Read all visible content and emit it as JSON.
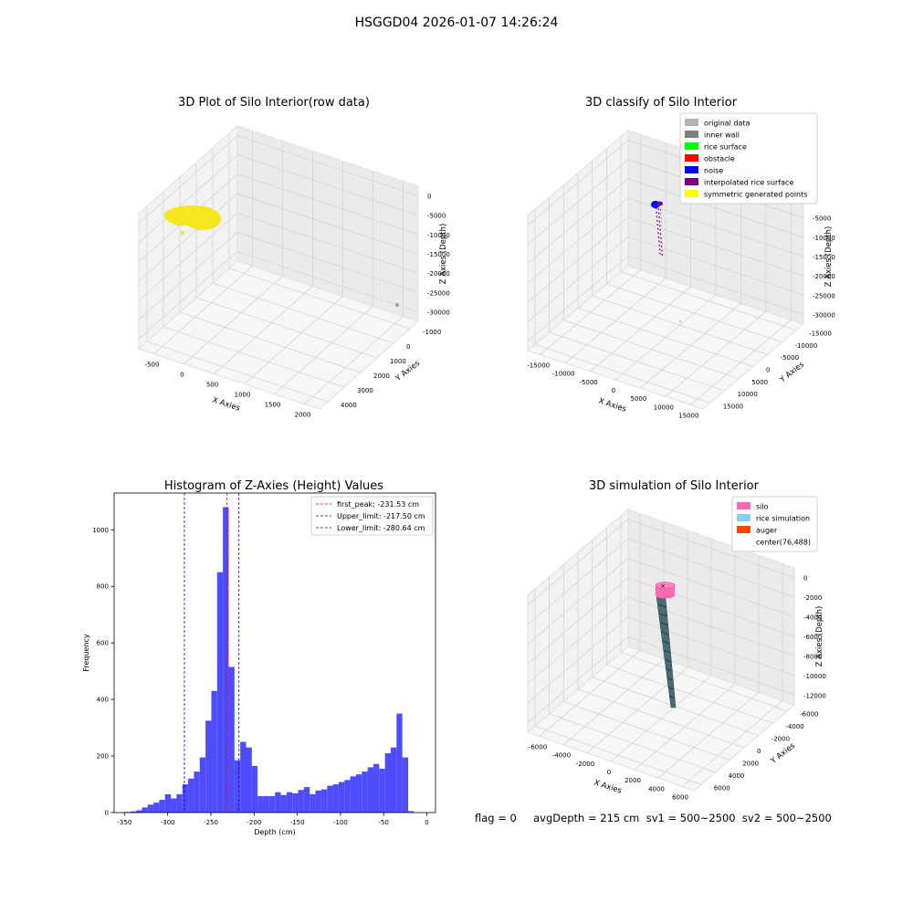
{
  "suptitle": "HSGGD04 2026-01-07 14:26:24",
  "status_text": "flag = 0     avgDepth = 215 cm  sv1 = 500~2500  sv2 = 500~2500",
  "colors": {
    "raw_points": "#f5e61e",
    "original_data": "#b3b3b3",
    "inner_wall": "#808080",
    "rice_surface": "#00ff00",
    "obstacle": "#ff0000",
    "noise": "#0000ff",
    "interpolated": "#800080",
    "symmetric": "#ffff00",
    "hist_bar": "#4d4dff",
    "silo": "#ff69b4",
    "rice_sim": "#87ceeb",
    "auger": "#ff4500",
    "auger_body": "#4a6b73"
  },
  "chart_data": [
    {
      "type": "scatter",
      "projection": "3d",
      "title": "3D Plot of Silo Interior(row data)",
      "xlabel": "X Axies",
      "ylabel": "Y Axies",
      "zlabel": "Z Axies (Depth)",
      "x_ticks": [
        "-500",
        "0",
        "500",
        "1000",
        "1500",
        "2000"
      ],
      "y_ticks": [
        "-1000",
        "0",
        "1000",
        "2000",
        "3000",
        "4000"
      ],
      "z_ticks": [
        "0",
        "-5000",
        "-10000",
        "-15000",
        "-20000",
        "-25000",
        "-30000"
      ],
      "xlim": [
        -600,
        2300
      ],
      "ylim": [
        -1200,
        4200
      ],
      "zlim": [
        -33000,
        1000
      ],
      "series": [
        {
          "cluster": "rice points",
          "x_range": [
            -400,
            200
          ],
          "y_range": [
            -200,
            400
          ],
          "z_range": [
            -500,
            0
          ]
        },
        {
          "cluster": "isolated point",
          "x": 2100,
          "y": 1500,
          "z": -33000
        }
      ],
      "grid": true
    },
    {
      "type": "scatter",
      "projection": "3d",
      "title": "3D classify of Silo Interior",
      "xlabel": "X Axies",
      "ylabel": "Y Axies",
      "zlabel": "Z Axies (Depth)",
      "x_ticks": [
        "-15000",
        "-10000",
        "-5000",
        "0",
        "5000",
        "10000",
        "15000"
      ],
      "y_ticks": [
        "-15000",
        "-10000",
        "-5000",
        "0",
        "5000",
        "10000",
        "15000"
      ],
      "z_ticks": [
        "0",
        "-5000",
        "-10000",
        "-15000",
        "-20000",
        "-25000",
        "-30000"
      ],
      "xlim": [
        -16000,
        16000
      ],
      "ylim": [
        -16000,
        16000
      ],
      "zlim": [
        -33000,
        1000
      ],
      "legend": [
        "original data",
        "inner wall",
        "rice surface",
        "obstacle",
        "noise",
        "interpolated rice surface",
        "symmetric generated points"
      ],
      "legend_position": "top-right",
      "grid": true
    },
    {
      "type": "bar",
      "title": "Histogram of Z-Axies (Height) Values",
      "xlabel": "Depth (cm)",
      "ylabel": "Frequency",
      "xlim": [
        -362,
        10
      ],
      "ylim": [
        0,
        1130
      ],
      "x_ticks": [
        -350,
        -300,
        -250,
        -200,
        -150,
        -100,
        -50,
        0
      ],
      "y_ticks": [
        0,
        200,
        400,
        600,
        800,
        1000
      ],
      "bin_width": 6.7,
      "bin_start": -350,
      "values": [
        2,
        4,
        8,
        18,
        28,
        35,
        45,
        65,
        50,
        65,
        100,
        120,
        145,
        195,
        325,
        430,
        850,
        1080,
        515,
        185,
        250,
        230,
        165,
        58,
        58,
        58,
        72,
        62,
        72,
        68,
        80,
        90,
        65,
        78,
        82,
        95,
        100,
        108,
        115,
        128,
        135,
        145,
        160,
        172,
        155,
        210,
        230,
        350,
        195,
        5
      ],
      "vlines": [
        {
          "label": "first_peak: -231.53 cm",
          "value": -231.53,
          "color": "#ff0000"
        },
        {
          "label": "Upper_limit: -217.50 cm",
          "value": -217.5,
          "color": "#0000ff"
        },
        {
          "label": "Lower_limit: -280.64 cm",
          "value": -280.64,
          "color": "#0000ff"
        }
      ],
      "legend_position": "top-right"
    },
    {
      "type": "scatter",
      "projection": "3d",
      "title": "3D simulation of Silo Interior",
      "xlabel": "X Axies",
      "ylabel": "Y Axies",
      "zlabel": "Z Axies (Depth)",
      "x_ticks": [
        "-6000",
        "-4000",
        "-2000",
        "0",
        "2000",
        "4000",
        "6000"
      ],
      "y_ticks": [
        "-6000",
        "-4000",
        "-2000",
        "0",
        "2000",
        "4000",
        "6000"
      ],
      "z_ticks": [
        "0",
        "-2000",
        "-4000",
        "-6000",
        "-8000",
        "-10000",
        "-12000"
      ],
      "xlim": [
        -6500,
        6500
      ],
      "ylim": [
        -6500,
        6500
      ],
      "zlim": [
        -13000,
        500
      ],
      "legend": [
        "silo",
        "rice simulation",
        "auger",
        "center(76,488)"
      ],
      "legend_position": "top-right",
      "grid": true
    }
  ]
}
